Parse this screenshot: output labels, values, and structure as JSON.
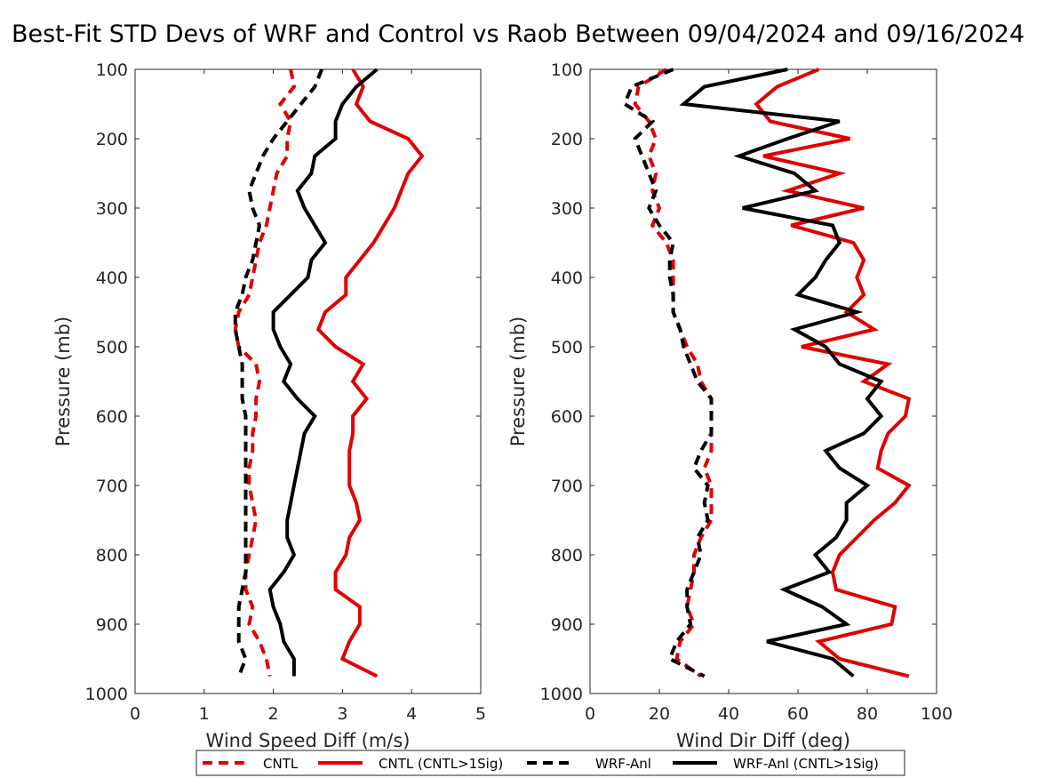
{
  "title": "Best-Fit STD Devs of WRF and Control vs Raob Between 09/04/2024 and 09/16/2024",
  "legend": {
    "placement": "bottom-center",
    "entries": [
      {
        "label": "CNTL",
        "color": "#e00000",
        "style": "dashed"
      },
      {
        "label": "CNTL (CNTL>1Sig)",
        "color": "#e00000",
        "style": "solid"
      },
      {
        "label": "WRF-Anl",
        "color": "#000000",
        "style": "dashed"
      },
      {
        "label": "WRF-Anl (CNTL>1Sig)",
        "color": "#000000",
        "style": "solid"
      }
    ]
  },
  "chart_data": [
    {
      "type": "line",
      "xlabel": "Wind Speed Diff (m/s)",
      "ylabel": "Pressure (mb)",
      "xlim": [
        0,
        5
      ],
      "ylim": [
        100,
        1000
      ],
      "y_reversed": true,
      "xticks": [
        0,
        1,
        2,
        3,
        4,
        5
      ],
      "yticks": [
        100,
        200,
        300,
        400,
        500,
        600,
        700,
        800,
        900,
        1000
      ],
      "grid": false,
      "pressure": [
        100,
        125,
        150,
        175,
        200,
        225,
        250,
        275,
        300,
        325,
        350,
        375,
        400,
        425,
        450,
        475,
        500,
        525,
        550,
        575,
        600,
        625,
        650,
        675,
        700,
        725,
        750,
        775,
        800,
        825,
        850,
        875,
        900,
        925,
        950,
        975
      ],
      "series": [
        {
          "name": "CNTL",
          "color": "#e00000",
          "style": "dashed",
          "values": [
            2.25,
            2.3,
            2.1,
            2.25,
            2.2,
            2.2,
            2.05,
            2.0,
            1.95,
            1.9,
            1.8,
            1.75,
            1.7,
            1.65,
            1.5,
            1.45,
            1.5,
            1.75,
            1.8,
            1.75,
            1.75,
            1.7,
            1.7,
            1.65,
            1.65,
            1.7,
            1.75,
            1.7,
            1.65,
            1.6,
            1.6,
            1.7,
            1.65,
            1.8,
            1.9,
            1.95
          ]
        },
        {
          "name": "CNTL (CNTL>1Sig)",
          "color": "#e00000",
          "style": "solid",
          "values": [
            3.15,
            3.3,
            3.2,
            3.4,
            3.95,
            4.15,
            3.95,
            3.85,
            3.75,
            3.6,
            3.45,
            3.25,
            3.05,
            3.05,
            2.75,
            2.65,
            2.9,
            3.3,
            3.15,
            3.35,
            3.15,
            3.15,
            3.1,
            3.1,
            3.1,
            3.2,
            3.25,
            3.1,
            3.05,
            2.9,
            2.9,
            3.25,
            3.25,
            3.1,
            3.0,
            3.5
          ]
        },
        {
          "name": "WRF-Anl",
          "color": "#000000",
          "style": "dashed",
          "values": [
            2.7,
            2.6,
            2.4,
            2.2,
            2.0,
            1.85,
            1.75,
            1.65,
            1.7,
            1.8,
            1.75,
            1.7,
            1.6,
            1.55,
            1.45,
            1.45,
            1.5,
            1.55,
            1.55,
            1.55,
            1.6,
            1.6,
            1.6,
            1.6,
            1.6,
            1.6,
            1.6,
            1.6,
            1.6,
            1.6,
            1.55,
            1.5,
            1.5,
            1.5,
            1.6,
            1.5
          ]
        },
        {
          "name": "WRF-Anl (CNTL>1Sig)",
          "color": "#000000",
          "style": "solid",
          "values": [
            3.5,
            3.2,
            3.0,
            2.9,
            2.9,
            2.6,
            2.55,
            2.35,
            2.45,
            2.6,
            2.75,
            2.55,
            2.5,
            2.25,
            2.0,
            2.0,
            2.1,
            2.25,
            2.15,
            2.35,
            2.6,
            2.45,
            2.4,
            2.35,
            2.3,
            2.25,
            2.2,
            2.2,
            2.3,
            2.15,
            1.95,
            2.0,
            2.1,
            2.15,
            2.3,
            2.3
          ]
        }
      ]
    },
    {
      "type": "line",
      "xlabel": "Wind Dir Diff (deg)",
      "ylabel": "Pressure (mb)",
      "xlim": [
        0,
        100
      ],
      "ylim": [
        100,
        1000
      ],
      "y_reversed": true,
      "xticks": [
        0,
        20,
        40,
        60,
        80,
        100
      ],
      "yticks": [
        100,
        200,
        300,
        400,
        500,
        600,
        700,
        800,
        900,
        1000
      ],
      "grid": false,
      "pressure": [
        100,
        125,
        150,
        175,
        200,
        225,
        250,
        275,
        300,
        325,
        350,
        375,
        400,
        425,
        450,
        475,
        500,
        525,
        550,
        575,
        600,
        625,
        650,
        675,
        700,
        725,
        750,
        775,
        800,
        825,
        850,
        875,
        900,
        925,
        950,
        975
      ],
      "series": [
        {
          "name": "CNTL",
          "color": "#e00000",
          "style": "dashed",
          "values": [
            22,
            14,
            13,
            17,
            19,
            17,
            19,
            18,
            20,
            18,
            22,
            24,
            24,
            24,
            24,
            26,
            28,
            31,
            32,
            35,
            35,
            35,
            35,
            33,
            35,
            35,
            35,
            32,
            30,
            30,
            29,
            28,
            30,
            26,
            25,
            32
          ]
        },
        {
          "name": "CNTL (CNTL>1Sig)",
          "color": "#e00000",
          "style": "solid",
          "values": [
            66,
            54,
            48,
            52,
            75,
            50,
            72,
            57,
            79,
            58,
            76,
            79,
            77,
            79,
            74,
            82,
            61,
            86,
            79,
            92,
            91,
            86,
            84,
            83,
            92,
            88,
            82,
            77,
            72,
            70,
            71,
            88,
            87,
            66,
            72,
            92
          ]
        },
        {
          "name": "WRF-Anl",
          "color": "#000000",
          "style": "dashed",
          "values": [
            24,
            12,
            10,
            18,
            13,
            15,
            17,
            19,
            17,
            20,
            24,
            23,
            23,
            24,
            24,
            26,
            27,
            29,
            31,
            35,
            35,
            35,
            32,
            30,
            34,
            33,
            34,
            31,
            32,
            30,
            28,
            28,
            29,
            25,
            23,
            33
          ]
        },
        {
          "name": "WRF-Anl (CNTL>1Sig)",
          "color": "#000000",
          "style": "solid",
          "values": [
            57,
            33,
            27,
            72,
            57,
            43,
            59,
            65,
            44,
            70,
            72,
            68,
            65,
            60,
            77,
            59,
            68,
            72,
            84,
            80,
            84,
            79,
            68,
            72,
            80,
            74,
            74,
            71,
            65,
            69,
            56,
            67,
            74,
            51,
            70,
            76
          ]
        }
      ]
    }
  ]
}
